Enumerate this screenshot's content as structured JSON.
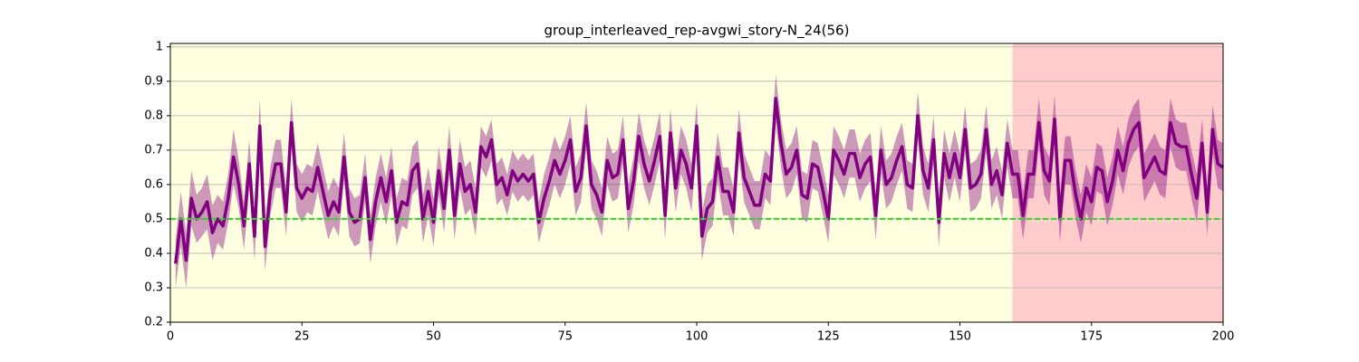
{
  "chart_data": {
    "type": "line",
    "title": "group_interleaved_rep-avgwi_story-N_24(56)",
    "x": [
      1,
      2,
      3,
      4,
      5,
      6,
      7,
      8,
      9,
      10,
      11,
      12,
      13,
      14,
      15,
      16,
      17,
      18,
      19,
      20,
      21,
      22,
      23,
      24,
      25,
      26,
      27,
      28,
      29,
      30,
      31,
      32,
      33,
      34,
      35,
      36,
      37,
      38,
      39,
      40,
      41,
      42,
      43,
      44,
      45,
      46,
      47,
      48,
      49,
      50,
      51,
      52,
      53,
      54,
      55,
      56,
      57,
      58,
      59,
      60,
      61,
      62,
      63,
      64,
      65,
      66,
      67,
      68,
      69,
      70,
      71,
      72,
      73,
      74,
      75,
      76,
      77,
      78,
      79,
      80,
      81,
      82,
      83,
      84,
      85,
      86,
      87,
      88,
      89,
      90,
      91,
      92,
      93,
      94,
      95,
      96,
      97,
      98,
      99,
      100,
      101,
      102,
      103,
      104,
      105,
      106,
      107,
      108,
      109,
      110,
      111,
      112,
      113,
      114,
      115,
      116,
      117,
      118,
      119,
      120,
      121,
      122,
      123,
      124,
      125,
      126,
      127,
      128,
      129,
      130,
      131,
      132,
      133,
      134,
      135,
      136,
      137,
      138,
      139,
      140,
      141,
      142,
      143,
      144,
      145,
      146,
      147,
      148,
      149,
      150,
      151,
      152,
      153,
      154,
      155,
      156,
      157,
      158,
      159,
      160,
      161,
      162,
      163,
      164,
      165,
      166,
      167,
      168,
      169,
      170,
      171,
      172,
      173,
      174,
      175,
      176,
      177,
      178,
      179,
      180,
      181,
      182,
      183,
      184,
      185,
      186,
      187,
      188,
      189,
      190,
      191,
      192,
      193,
      194,
      195,
      196,
      197,
      198,
      199,
      200
    ],
    "series": [
      {
        "color": "#800080",
        "band_color": "#800080",
        "values": [
          0.37,
          0.5,
          0.38,
          0.56,
          0.5,
          0.52,
          0.55,
          0.46,
          0.5,
          0.48,
          0.56,
          0.68,
          0.6,
          0.48,
          0.66,
          0.45,
          0.77,
          0.42,
          0.58,
          0.66,
          0.66,
          0.52,
          0.78,
          0.59,
          0.56,
          0.59,
          0.58,
          0.65,
          0.58,
          0.51,
          0.55,
          0.52,
          0.68,
          0.52,
          0.49,
          0.5,
          0.62,
          0.44,
          0.55,
          0.62,
          0.55,
          0.64,
          0.49,
          0.55,
          0.54,
          0.64,
          0.66,
          0.5,
          0.58,
          0.49,
          0.64,
          0.53,
          0.7,
          0.51,
          0.66,
          0.58,
          0.6,
          0.52,
          0.71,
          0.68,
          0.73,
          0.6,
          0.62,
          0.57,
          0.64,
          0.61,
          0.63,
          0.61,
          0.63,
          0.49,
          0.56,
          0.61,
          0.67,
          0.63,
          0.67,
          0.73,
          0.58,
          0.62,
          0.77,
          0.6,
          0.57,
          0.52,
          0.67,
          0.62,
          0.63,
          0.73,
          0.53,
          0.61,
          0.74,
          0.66,
          0.61,
          0.67,
          0.74,
          0.51,
          0.75,
          0.59,
          0.7,
          0.66,
          0.59,
          0.77,
          0.45,
          0.53,
          0.55,
          0.68,
          0.58,
          0.58,
          0.52,
          0.75,
          0.62,
          0.58,
          0.54,
          0.54,
          0.63,
          0.61,
          0.85,
          0.72,
          0.63,
          0.65,
          0.7,
          0.57,
          0.56,
          0.66,
          0.65,
          0.58,
          0.5,
          0.7,
          0.67,
          0.63,
          0.69,
          0.69,
          0.62,
          0.66,
          0.68,
          0.51,
          0.7,
          0.6,
          0.62,
          0.67,
          0.71,
          0.6,
          0.59,
          0.8,
          0.64,
          0.59,
          0.73,
          0.49,
          0.69,
          0.62,
          0.69,
          0.62,
          0.76,
          0.59,
          0.6,
          0.63,
          0.76,
          0.6,
          0.64,
          0.57,
          0.72,
          0.63,
          0.63,
          0.51,
          0.63,
          0.63,
          0.78,
          0.64,
          0.61,
          0.79,
          0.5,
          0.67,
          0.67,
          0.57,
          0.5,
          0.59,
          0.55,
          0.65,
          0.64,
          0.55,
          0.61,
          0.7,
          0.64,
          0.72,
          0.76,
          0.78,
          0.62,
          0.65,
          0.68,
          0.64,
          0.63,
          0.78,
          0.72,
          0.71,
          0.71,
          0.63,
          0.56,
          0.72,
          0.52,
          0.76,
          0.66,
          0.65
        ],
        "errors": [
          0.07,
          0.08,
          0.08,
          0.08,
          0.07,
          0.07,
          0.08,
          0.08,
          0.07,
          0.07,
          0.07,
          0.08,
          0.07,
          0.07,
          0.07,
          0.07,
          0.08,
          0.07,
          0.07,
          0.07,
          0.07,
          0.07,
          0.07,
          0.07,
          0.07,
          0.07,
          0.07,
          0.07,
          0.07,
          0.07,
          0.07,
          0.07,
          0.07,
          0.07,
          0.07,
          0.07,
          0.07,
          0.07,
          0.07,
          0.07,
          0.07,
          0.07,
          0.07,
          0.07,
          0.07,
          0.07,
          0.07,
          0.07,
          0.07,
          0.07,
          0.07,
          0.07,
          0.07,
          0.07,
          0.07,
          0.07,
          0.07,
          0.07,
          0.06,
          0.06,
          0.06,
          0.06,
          0.06,
          0.06,
          0.06,
          0.06,
          0.06,
          0.06,
          0.06,
          0.06,
          0.07,
          0.07,
          0.07,
          0.07,
          0.07,
          0.07,
          0.07,
          0.07,
          0.07,
          0.07,
          0.07,
          0.07,
          0.07,
          0.07,
          0.07,
          0.07,
          0.07,
          0.07,
          0.07,
          0.07,
          0.07,
          0.07,
          0.07,
          0.07,
          0.07,
          0.07,
          0.07,
          0.07,
          0.07,
          0.07,
          0.07,
          0.07,
          0.07,
          0.07,
          0.07,
          0.07,
          0.07,
          0.07,
          0.07,
          0.07,
          0.07,
          0.07,
          0.07,
          0.07,
          0.07,
          0.07,
          0.07,
          0.07,
          0.07,
          0.07,
          0.07,
          0.07,
          0.07,
          0.07,
          0.07,
          0.07,
          0.07,
          0.07,
          0.07,
          0.07,
          0.07,
          0.07,
          0.07,
          0.07,
          0.07,
          0.07,
          0.07,
          0.07,
          0.07,
          0.07,
          0.07,
          0.07,
          0.07,
          0.07,
          0.07,
          0.07,
          0.07,
          0.07,
          0.07,
          0.07,
          0.07,
          0.07,
          0.07,
          0.07,
          0.07,
          0.07,
          0.07,
          0.07,
          0.07,
          0.07,
          0.07,
          0.07,
          0.07,
          0.07,
          0.07,
          0.07,
          0.07,
          0.07,
          0.07,
          0.07,
          0.07,
          0.07,
          0.07,
          0.07,
          0.07,
          0.07,
          0.07,
          0.07,
          0.07,
          0.07,
          0.07,
          0.07,
          0.07,
          0.07,
          0.07,
          0.07,
          0.07,
          0.07,
          0.07,
          0.07,
          0.07,
          0.07,
          0.07,
          0.07,
          0.07,
          0.07,
          0.07,
          0.07,
          0.07,
          0.07
        ]
      }
    ],
    "regions": [
      {
        "xlim": [
          0,
          160
        ],
        "color": "#ffffe0"
      },
      {
        "xlim": [
          160,
          200
        ],
        "color": "#ffcccc"
      }
    ],
    "reference_line": {
      "y": 0.5,
      "color": "#22dd22"
    },
    "xlim": [
      0,
      200
    ],
    "xticks": [
      0,
      25,
      50,
      75,
      100,
      125,
      150,
      175,
      200
    ],
    "ylim": [
      0.2,
      1.01
    ],
    "yticks": [
      0.2,
      0.3,
      0.4,
      0.5,
      0.6,
      0.7,
      0.8,
      0.9,
      1.0
    ],
    "grid": true
  }
}
